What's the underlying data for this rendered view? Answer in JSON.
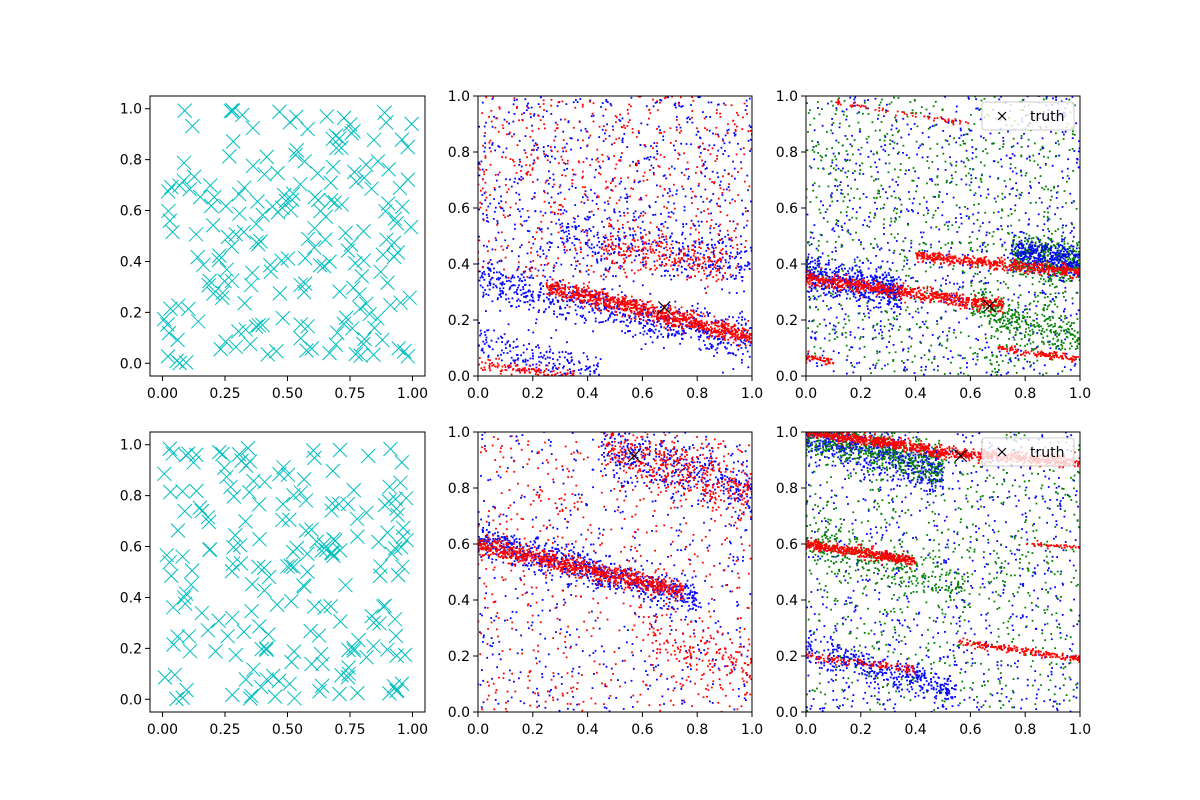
{
  "figure": {
    "background": "#ffffff"
  },
  "chart_data": [
    {
      "id": "row1-col1",
      "type": "scatter",
      "marker": "x",
      "color": "#00bfbf",
      "xlim": [
        -0.05,
        1.05
      ],
      "ylim": [
        -0.05,
        1.05
      ],
      "xticks": [
        "0.00",
        "0.25",
        "0.50",
        "0.75",
        "1.00"
      ],
      "yticks": [
        "0.0",
        "0.2",
        "0.4",
        "0.6",
        "0.8",
        "1.0"
      ],
      "random_points": {
        "count": 200,
        "seed": 11
      }
    },
    {
      "id": "row1-col2",
      "type": "scatter",
      "marker": "dot",
      "xlim": [
        0,
        1
      ],
      "ylim": [
        0,
        1
      ],
      "xticks": [
        "0.0",
        "0.2",
        "0.4",
        "0.6",
        "0.8",
        "1.0"
      ],
      "yticks": [
        "0.0",
        "0.2",
        "0.4",
        "0.6",
        "0.8",
        "1.0"
      ],
      "bands": [
        {
          "color": "#0000ff",
          "x0": 0.0,
          "x1": 1.0,
          "y0": 0.34,
          "y1": 0.12,
          "spread": 0.04,
          "count": 700
        },
        {
          "color": "#ff0000",
          "x0": 0.25,
          "x1": 1.0,
          "y0": 0.32,
          "y1": 0.14,
          "spread": 0.018,
          "count": 900
        },
        {
          "color": "#0000ff",
          "x0": 0.0,
          "x1": 0.45,
          "y0": 0.12,
          "y1": 0.0,
          "spread": 0.04,
          "count": 220
        },
        {
          "color": "#ff0000",
          "x0": 0.0,
          "x1": 0.35,
          "y0": 0.04,
          "y1": 0.0,
          "spread": 0.012,
          "count": 120
        },
        {
          "color": "#ff0000",
          "x0": 0.45,
          "x1": 0.9,
          "y0": 0.47,
          "y1": 0.39,
          "spread": 0.035,
          "count": 220
        },
        {
          "color": "#0000ff",
          "x0": 0.3,
          "x1": 1.0,
          "y0": 0.52,
          "y1": 0.38,
          "spread": 0.05,
          "count": 250
        }
      ],
      "scatter_noise": [
        {
          "color": "#0000ff",
          "count": 700,
          "ymin": 0.35,
          "ymax": 1.0
        },
        {
          "color": "#ff0000",
          "count": 600,
          "ymin": 0.35,
          "ymax": 1.0
        }
      ],
      "truth": {
        "x": 0.68,
        "y": 0.245
      }
    },
    {
      "id": "row1-col3",
      "type": "scatter",
      "marker": "dot",
      "xlim": [
        0,
        1
      ],
      "ylim": [
        0,
        1
      ],
      "xticks": [
        "0.0",
        "0.2",
        "0.4",
        "0.6",
        "0.8",
        "1.0"
      ],
      "yticks": [
        "0.0",
        "0.2",
        "0.4",
        "0.6",
        "0.8",
        "1.0"
      ],
      "bands": [
        {
          "color": "#0000ff",
          "x0": 0.0,
          "x1": 0.35,
          "y0": 0.36,
          "y1": 0.3,
          "spread": 0.035,
          "count": 500
        },
        {
          "color": "#008000",
          "x0": 0.75,
          "x1": 1.0,
          "y0": 0.43,
          "y1": 0.4,
          "spread": 0.04,
          "count": 400
        },
        {
          "color": "#0000ff",
          "x0": 0.75,
          "x1": 1.0,
          "y0": 0.45,
          "y1": 0.4,
          "spread": 0.03,
          "count": 350
        },
        {
          "color": "#008000",
          "x0": 0.6,
          "x1": 1.0,
          "y0": 0.26,
          "y1": 0.13,
          "spread": 0.035,
          "count": 300
        },
        {
          "color": "#ff0000",
          "x0": 0.0,
          "x1": 0.72,
          "y0": 0.35,
          "y1": 0.25,
          "spread": 0.012,
          "count": 700
        },
        {
          "color": "#ff0000",
          "x0": 0.4,
          "x1": 1.0,
          "y0": 0.43,
          "y1": 0.37,
          "spread": 0.01,
          "count": 500
        },
        {
          "color": "#ff0000",
          "x0": 0.7,
          "x1": 1.0,
          "y0": 0.1,
          "y1": 0.06,
          "spread": 0.006,
          "count": 120
        },
        {
          "color": "#ff0000",
          "x0": 0.0,
          "x1": 0.1,
          "y0": 0.07,
          "y1": 0.05,
          "spread": 0.008,
          "count": 50
        },
        {
          "color": "#ff0000",
          "x0": 0.1,
          "x1": 0.6,
          "y0": 0.98,
          "y1": 0.9,
          "spread": 0.005,
          "count": 60
        }
      ],
      "scatter_noise": [
        {
          "color": "#0000ff",
          "count": 900,
          "ymin": 0.0,
          "ymax": 1.0
        },
        {
          "color": "#008000",
          "count": 900,
          "ymin": 0.0,
          "ymax": 1.0
        }
      ],
      "truth": {
        "x": 0.67,
        "y": 0.25
      },
      "legend": {
        "position": "upper right",
        "entries": [
          "truth"
        ]
      }
    },
    {
      "id": "row2-col1",
      "type": "scatter",
      "marker": "x",
      "color": "#00bfbf",
      "xlim": [
        -0.05,
        1.05
      ],
      "ylim": [
        -0.05,
        1.05
      ],
      "xticks": [
        "0.00",
        "0.25",
        "0.50",
        "0.75",
        "1.00"
      ],
      "yticks": [
        "0.0",
        "0.2",
        "0.4",
        "0.6",
        "0.8",
        "1.0"
      ],
      "random_points": {
        "count": 200,
        "seed": 29
      }
    },
    {
      "id": "row2-col2",
      "type": "scatter",
      "marker": "dot",
      "xlim": [
        0,
        1
      ],
      "ylim": [
        0,
        1
      ],
      "xticks": [
        "0.0",
        "0.2",
        "0.4",
        "0.6",
        "0.8",
        "1.0"
      ],
      "yticks": [
        "0.0",
        "0.2",
        "0.4",
        "0.6",
        "0.8",
        "1.0"
      ],
      "bands": [
        {
          "color": "#0000ff",
          "x0": 0.0,
          "x1": 0.8,
          "y0": 0.62,
          "y1": 0.4,
          "spread": 0.03,
          "count": 700
        },
        {
          "color": "#ff0000",
          "x0": 0.0,
          "x1": 0.75,
          "y0": 0.6,
          "y1": 0.43,
          "spread": 0.017,
          "count": 800
        },
        {
          "color": "#ff0000",
          "x0": 0.45,
          "x1": 1.0,
          "y0": 0.95,
          "y1": 0.78,
          "spread": 0.05,
          "count": 400
        },
        {
          "color": "#0000ff",
          "x0": 0.45,
          "x1": 1.0,
          "y0": 0.95,
          "y1": 0.8,
          "spread": 0.05,
          "count": 350
        },
        {
          "color": "#ff0000",
          "x0": 0.6,
          "x1": 1.0,
          "y0": 0.3,
          "y1": 0.15,
          "spread": 0.05,
          "count": 150
        }
      ],
      "scatter_noise": [
        {
          "color": "#0000ff",
          "count": 550,
          "ymin": 0.0,
          "ymax": 1.0
        },
        {
          "color": "#ff0000",
          "count": 600,
          "ymin": 0.0,
          "ymax": 1.0
        }
      ],
      "truth": {
        "x": 0.57,
        "y": 0.915
      }
    },
    {
      "id": "row2-col3",
      "type": "scatter",
      "marker": "dot",
      "xlim": [
        0,
        1
      ],
      "ylim": [
        0,
        1
      ],
      "xticks": [
        "0.0",
        "0.2",
        "0.4",
        "0.6",
        "0.8",
        "1.0"
      ],
      "yticks": [
        "0.0",
        "0.2",
        "0.4",
        "0.6",
        "0.8",
        "1.0"
      ],
      "bands": [
        {
          "color": "#0000ff",
          "x0": 0.0,
          "x1": 0.5,
          "y0": 1.0,
          "y1": 0.85,
          "spread": 0.04,
          "count": 600
        },
        {
          "color": "#008000",
          "x0": 0.0,
          "x1": 0.5,
          "y0": 1.0,
          "y1": 0.87,
          "spread": 0.04,
          "count": 500
        },
        {
          "color": "#0000ff",
          "x0": 0.0,
          "x1": 0.55,
          "y0": 0.22,
          "y1": 0.08,
          "spread": 0.03,
          "count": 350
        },
        {
          "color": "#008000",
          "x0": 0.0,
          "x1": 0.6,
          "y0": 0.6,
          "y1": 0.45,
          "spread": 0.05,
          "count": 300
        },
        {
          "color": "#ff0000",
          "x0": 0.0,
          "x1": 0.45,
          "y0": 1.0,
          "y1": 0.94,
          "spread": 0.01,
          "count": 500
        },
        {
          "color": "#ff0000",
          "x0": 0.45,
          "x1": 1.0,
          "y0": 0.93,
          "y1": 0.89,
          "spread": 0.01,
          "count": 500
        },
        {
          "color": "#ff0000",
          "x0": 0.0,
          "x1": 0.4,
          "y0": 0.6,
          "y1": 0.54,
          "spread": 0.01,
          "count": 450
        },
        {
          "color": "#ff0000",
          "x0": 0.55,
          "x1": 1.0,
          "y0": 0.25,
          "y1": 0.19,
          "spread": 0.006,
          "count": 200
        },
        {
          "color": "#ff0000",
          "x0": 0.0,
          "x1": 0.4,
          "y0": 0.2,
          "y1": 0.15,
          "spread": 0.007,
          "count": 120
        },
        {
          "color": "#ff0000",
          "x0": 0.8,
          "x1": 1.0,
          "y0": 0.6,
          "y1": 0.59,
          "spread": 0.005,
          "count": 40
        }
      ],
      "scatter_noise": [
        {
          "color": "#0000ff",
          "count": 800,
          "ymin": 0.0,
          "ymax": 1.0
        },
        {
          "color": "#008000",
          "count": 700,
          "ymin": 0.0,
          "ymax": 1.0
        }
      ],
      "truth": {
        "x": 0.565,
        "y": 0.915
      },
      "legend": {
        "position": "upper right",
        "entries": [
          "truth"
        ]
      }
    }
  ]
}
